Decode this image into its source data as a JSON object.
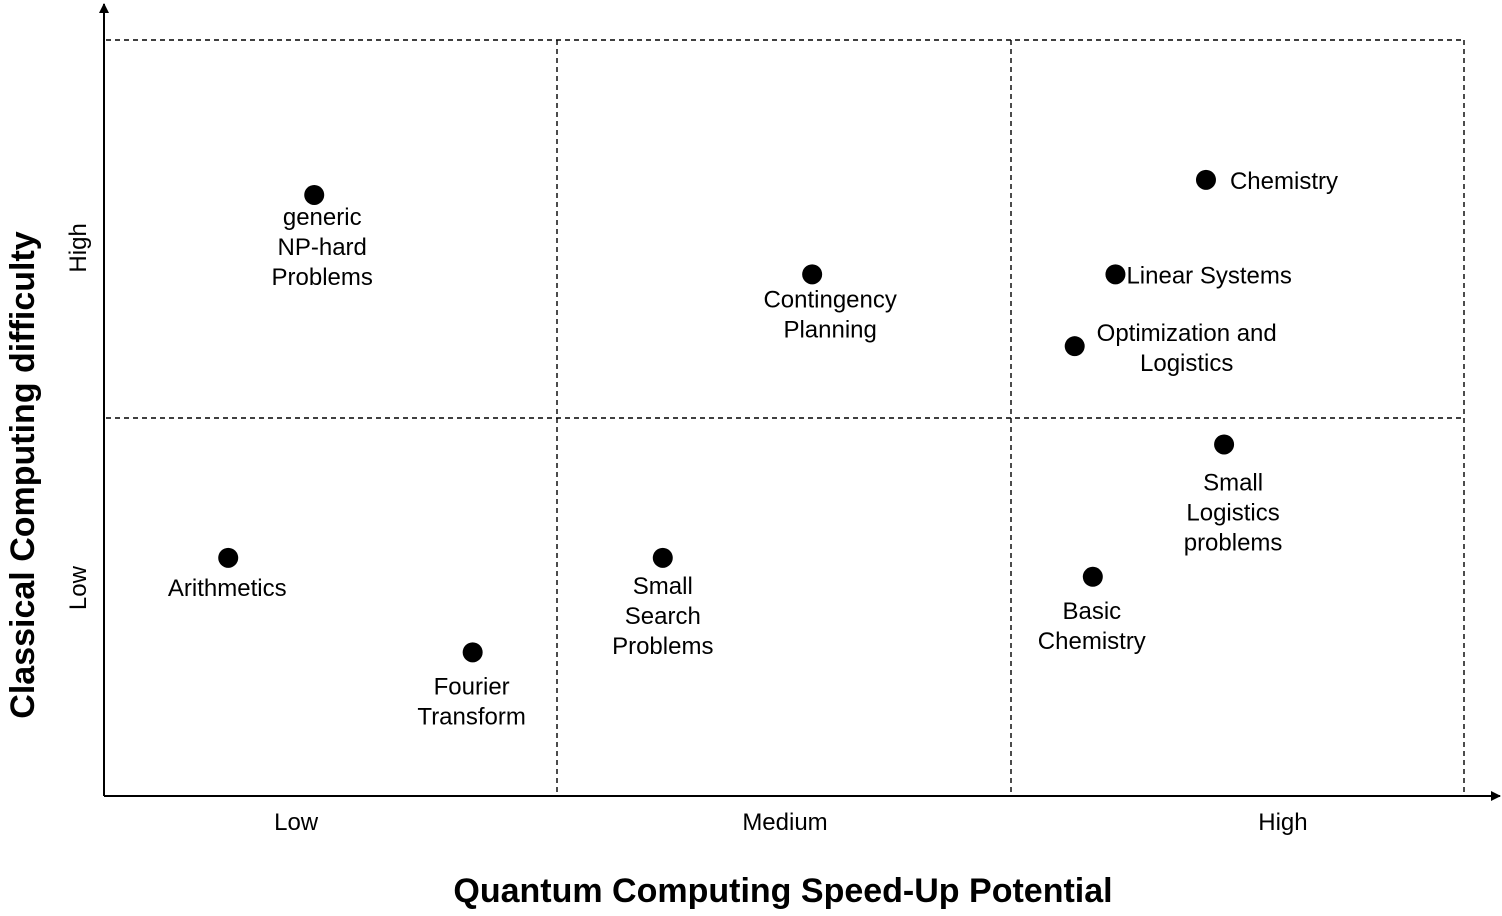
{
  "chart_data": {
    "type": "scatter",
    "title": "",
    "xlabel": "Quantum Computing Speed-Up Potential",
    "ylabel": "Classical Computing difficulty",
    "x_categories": [
      "Low",
      "Medium",
      "High"
    ],
    "y_categories": [
      "Low",
      "High"
    ],
    "xlim": [
      0,
      3
    ],
    "ylim": [
      0,
      2
    ],
    "grid": true,
    "points": [
      {
        "label": [
          "generic",
          "NP-hard",
          "Problems"
        ],
        "x": 0.46,
        "y": 1.59
      },
      {
        "label": [
          "Contingency",
          "Planning"
        ],
        "x": 1.56,
        "y": 1.38
      },
      {
        "label": [
          "Chemistry"
        ],
        "x": 2.43,
        "y": 1.63
      },
      {
        "label": [
          "Linear Systems"
        ],
        "x": 2.23,
        "y": 1.38
      },
      {
        "label": [
          "Optimization and",
          "Logistics"
        ],
        "x": 2.14,
        "y": 1.19
      },
      {
        "label": [
          "Small",
          "Logistics",
          "problems"
        ],
        "x": 2.47,
        "y": 0.93
      },
      {
        "label": [
          "Arithmetics"
        ],
        "x": 0.27,
        "y": 0.63
      },
      {
        "label": [
          "Fourier",
          "Transform"
        ],
        "x": 0.81,
        "y": 0.38
      },
      {
        "label": [
          "Small",
          "Search",
          "Problems"
        ],
        "x": 1.23,
        "y": 0.63
      },
      {
        "label": [
          "Basic",
          "Chemistry"
        ],
        "x": 2.18,
        "y": 0.58
      }
    ]
  }
}
